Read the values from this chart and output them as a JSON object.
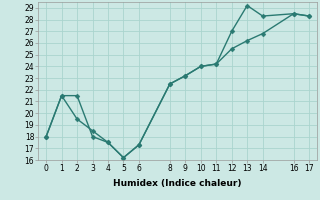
{
  "xlabel": "Humidex (Indice chaleur)",
  "background_color": "#cce8e4",
  "grid_color": "#aad4ce",
  "line_color": "#2a7a72",
  "xlim": [
    -0.5,
    17.5
  ],
  "ylim": [
    16,
    29.5
  ],
  "xticks": [
    0,
    1,
    2,
    3,
    4,
    5,
    6,
    8,
    9,
    10,
    11,
    12,
    13,
    14,
    16,
    17
  ],
  "yticks": [
    16,
    17,
    18,
    19,
    20,
    21,
    22,
    23,
    24,
    25,
    26,
    27,
    28,
    29
  ],
  "line1_x": [
    0,
    1,
    2,
    3,
    4,
    5,
    6,
    8,
    9,
    10,
    11,
    12,
    13,
    14,
    16,
    17
  ],
  "line1_y": [
    18,
    21.5,
    21.5,
    18,
    17.5,
    16.2,
    17.3,
    22.5,
    23.2,
    24,
    24.2,
    27,
    29.2,
    28.3,
    28.5,
    28.3
  ],
  "line2_x": [
    0,
    1,
    2,
    3,
    4,
    5,
    6,
    8,
    9,
    10,
    11,
    12,
    13,
    14,
    16,
    17
  ],
  "line2_y": [
    18,
    21.5,
    19.5,
    18.5,
    17.5,
    16.2,
    17.3,
    22.5,
    23.2,
    24,
    24.2,
    25.5,
    26.2,
    26.8,
    28.5,
    28.3
  ],
  "marker_size": 2.5,
  "line_width": 1.0,
  "tick_fontsize": 5.5,
  "xlabel_fontsize": 6.5
}
